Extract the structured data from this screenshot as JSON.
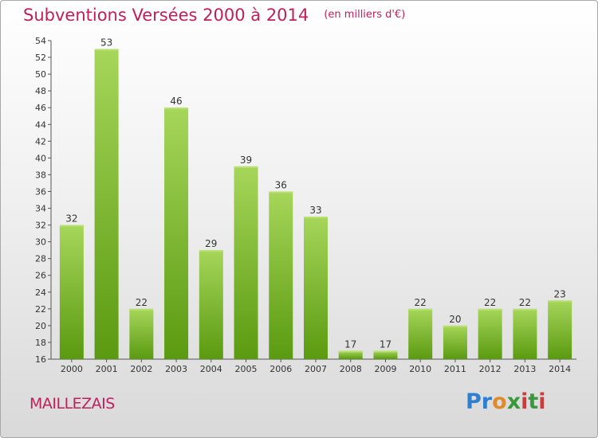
{
  "chart_data": {
    "type": "bar",
    "title": "Subventions Versées 2000 à 2014",
    "subtitle": "(en milliers d'€)",
    "categories": [
      "2000",
      "2001",
      "2002",
      "2003",
      "2004",
      "2005",
      "2006",
      "2007",
      "2008",
      "2009",
      "2010",
      "2011",
      "2012",
      "2013",
      "2014"
    ],
    "values": [
      32,
      53,
      22,
      46,
      29,
      39,
      36,
      33,
      17,
      17,
      22,
      20,
      22,
      22,
      23
    ],
    "xlabel": "",
    "ylabel": "",
    "ylim": [
      16,
      54
    ],
    "yticks": [
      16,
      18,
      20,
      22,
      24,
      26,
      28,
      30,
      32,
      34,
      36,
      38,
      40,
      42,
      44,
      46,
      48,
      50,
      52,
      54
    ],
    "grid": false,
    "colors": {
      "bar_light": "#9fd150",
      "bar_dark": "#5e9e12",
      "title": "#c0205a"
    }
  },
  "footer": {
    "commune": "MAILLEZAIS",
    "logo": "Proxiti"
  }
}
